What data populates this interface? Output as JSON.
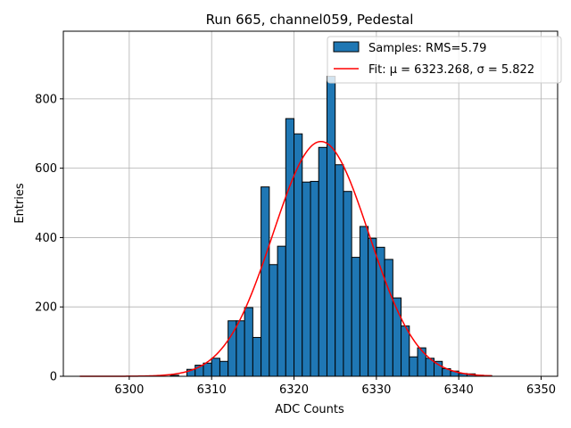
{
  "chart_data": {
    "type": "bar",
    "title": "Run 665, channel059, Pedestal",
    "xlabel": "ADC Counts",
    "ylabel": "Entries",
    "xlim": [
      6292,
      6352
    ],
    "ylim": [
      0,
      995
    ],
    "xticks": [
      6300,
      6310,
      6320,
      6330,
      6340,
      6350
    ],
    "yticks": [
      0,
      200,
      400,
      600,
      800
    ],
    "grid": true,
    "legend_position": "top-right",
    "histogram": {
      "name": "Samples: RMS=5.79",
      "color": "#1f77b4",
      "bin_width": 1,
      "bins": [
        {
          "x": 6305,
          "y": 3
        },
        {
          "x": 6306,
          "y": 0
        },
        {
          "x": 6307,
          "y": 20
        },
        {
          "x": 6308,
          "y": 32
        },
        {
          "x": 6309,
          "y": 38
        },
        {
          "x": 6310,
          "y": 52
        },
        {
          "x": 6311,
          "y": 43
        },
        {
          "x": 6312,
          "y": 160
        },
        {
          "x": 6313,
          "y": 160
        },
        {
          "x": 6314,
          "y": 198
        },
        {
          "x": 6315,
          "y": 112
        },
        {
          "x": 6316,
          "y": 546
        },
        {
          "x": 6317,
          "y": 322
        },
        {
          "x": 6318,
          "y": 375
        },
        {
          "x": 6319,
          "y": 743
        },
        {
          "x": 6320,
          "y": 699
        },
        {
          "x": 6321,
          "y": 560
        },
        {
          "x": 6322,
          "y": 562
        },
        {
          "x": 6323,
          "y": 660
        },
        {
          "x": 6324,
          "y": 865
        },
        {
          "x": 6325,
          "y": 610
        },
        {
          "x": 6326,
          "y": 533
        },
        {
          "x": 6327,
          "y": 343
        },
        {
          "x": 6328,
          "y": 432
        },
        {
          "x": 6329,
          "y": 398
        },
        {
          "x": 6330,
          "y": 372
        },
        {
          "x": 6331,
          "y": 337
        },
        {
          "x": 6332,
          "y": 226
        },
        {
          "x": 6333,
          "y": 145
        },
        {
          "x": 6334,
          "y": 56
        },
        {
          "x": 6335,
          "y": 82
        },
        {
          "x": 6336,
          "y": 52
        },
        {
          "x": 6337,
          "y": 43
        },
        {
          "x": 6338,
          "y": 22
        },
        {
          "x": 6339,
          "y": 15
        },
        {
          "x": 6340,
          "y": 8
        },
        {
          "x": 6341,
          "y": 7
        },
        {
          "x": 6342,
          "y": 3
        },
        {
          "x": 6343,
          "y": 2
        }
      ]
    },
    "fit": {
      "name": "Fit: μ = 6323.268, σ = 5.822",
      "color": "#ff0000",
      "mu": 6323.268,
      "sigma": 5.822,
      "amplitude": 677,
      "x_range": [
        6294,
        6344
      ]
    }
  }
}
